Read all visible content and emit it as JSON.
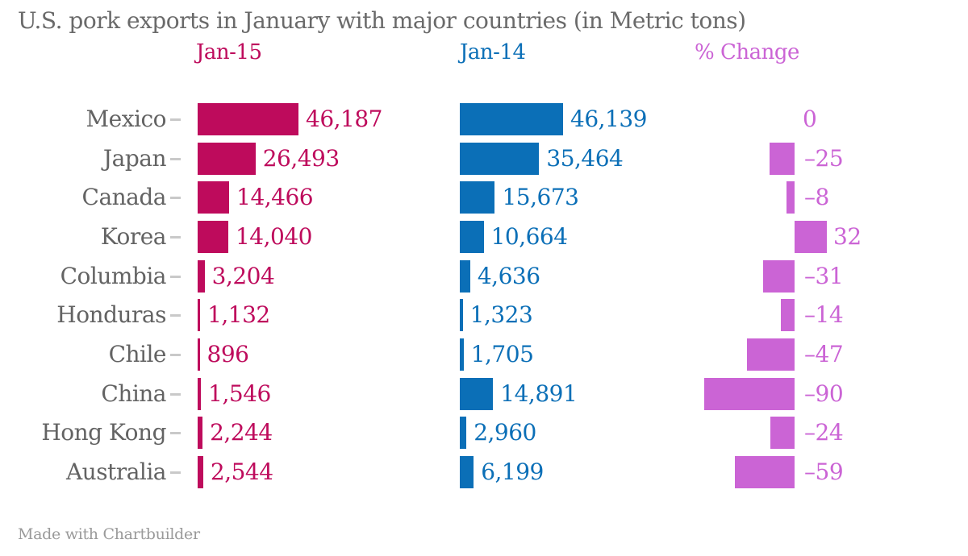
{
  "chart_data": {
    "type": "bar",
    "orientation": "horizontal",
    "title": "U.S. pork exports in January with major countries (in Metric tons)",
    "categories": [
      "Mexico",
      "Japan",
      "Canada",
      "Korea",
      "Columbia",
      "Honduras",
      "Chile",
      "China",
      "Hong Kong",
      "Australia"
    ],
    "series": [
      {
        "name": "Jan-15",
        "color": "#be0b5c",
        "values": [
          46187,
          26493,
          14466,
          14040,
          3204,
          1132,
          896,
          1546,
          2244,
          2544
        ]
      },
      {
        "name": "Jan-14",
        "color": "#0b6fb7",
        "values": [
          46139,
          35464,
          15673,
          10664,
          4636,
          1323,
          1705,
          14891,
          2960,
          6199
        ]
      },
      {
        "name": "% Change",
        "color": "#cb64d5",
        "values": [
          0,
          -25,
          -8,
          32,
          -31,
          -14,
          -47,
          -90,
          -24,
          -59
        ]
      }
    ],
    "value_labels": true,
    "grid": false,
    "legend_position": "top",
    "axis_ranges": {
      "jan15_max": 46187,
      "jan14_max": 46139,
      "pct_zero_anchor": true
    }
  },
  "footer": {
    "credit": "Made with Chartbuilder"
  },
  "colors": {
    "title": "#6a6a6a",
    "category_label": "#636363",
    "tick": "#c9c9c9",
    "credit": "#9a9a9a",
    "background": "#ffffff"
  }
}
